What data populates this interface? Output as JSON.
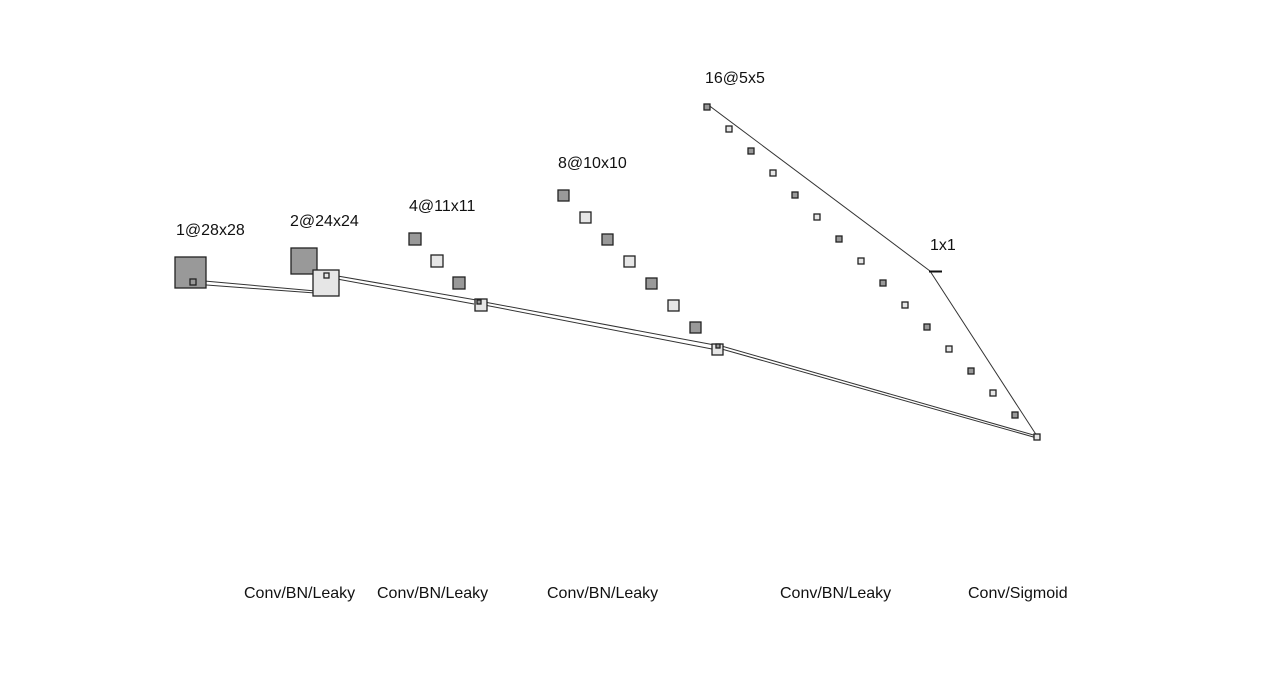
{
  "colors": {
    "dark_map": "#999999",
    "light_map": "#e6e6e6",
    "stroke": "#222222",
    "line": "#333333",
    "text": "#111111"
  },
  "layers": [
    {
      "label": "1@28x28"
    },
    {
      "label": "2@24x24"
    },
    {
      "label": "4@11x11"
    },
    {
      "label": "8@10x10"
    },
    {
      "label": "16@5x5"
    },
    {
      "label": "1x1"
    }
  ],
  "operations": [
    {
      "label": "Conv/BN/Leaky"
    },
    {
      "label": "Conv/BN/Leaky"
    },
    {
      "label": "Conv/BN/Leaky"
    },
    {
      "label": "Conv/BN/Leaky"
    },
    {
      "label": "Conv/Sigmoid"
    }
  ]
}
